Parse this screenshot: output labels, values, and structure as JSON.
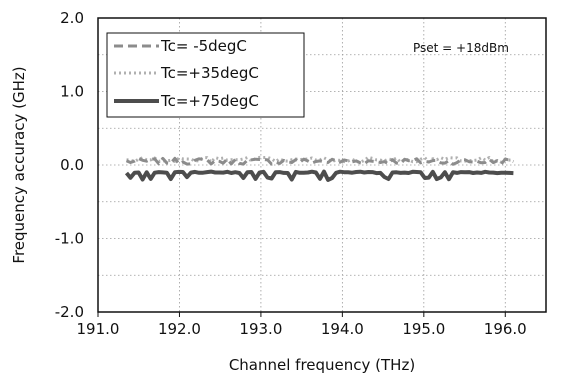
{
  "chart_data": {
    "type": "line",
    "xlabel": "Channel frequency (THz)",
    "ylabel": "Frequency accuracy (GHz)",
    "xlim": [
      191.0,
      196.5
    ],
    "ylim": [
      -2.0,
      2.0
    ],
    "x_ticks": [
      "191.0",
      "192.0",
      "193.0",
      "194.0",
      "195.0",
      "196.0"
    ],
    "x_tick_values": [
      191.0,
      192.0,
      193.0,
      194.0,
      195.0,
      196.0
    ],
    "y_ticks": [
      "2.0",
      "1.0",
      "0.0",
      "-1.0",
      "-2.0"
    ],
    "y_tick_values": [
      2.0,
      1.0,
      0.0,
      -1.0,
      -2.0
    ],
    "grid": "dotted-major",
    "legend_placement": "top-left",
    "annotation": "Pset = +18dBm",
    "series": [
      {
        "name": "Tc= -5degC",
        "style": "dashed",
        "color": "#8c8c8c",
        "x_range": [
          191.35,
          196.1
        ],
        "base": 0.05,
        "spread": 0.08
      },
      {
        "name": "Tc=+35degC",
        "style": "dotted",
        "color": "#b0b0b0",
        "x_range": [
          191.35,
          196.1
        ],
        "base": 0.07,
        "spread": 0.07
      },
      {
        "name": "Tc=+75degC",
        "style": "solid",
        "color": "#4d4d4d",
        "x_range": [
          191.35,
          196.1
        ],
        "base": -0.1,
        "spread": 0.07
      }
    ]
  }
}
